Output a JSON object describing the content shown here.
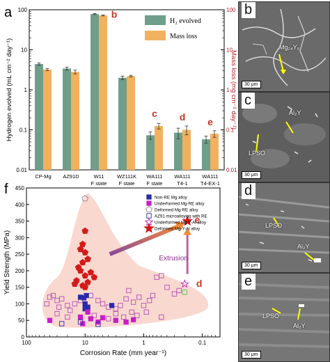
{
  "chart_data": [
    {
      "panel": "a",
      "type": "bar",
      "categories": [
        "CP-Mg",
        "AZ91D",
        "W11\nF state",
        "WZ111K\nF state",
        "WA111\nF state",
        "WA111\nT4-1",
        "WA111\nT4-EX-1"
      ],
      "series": [
        {
          "name": "H₂ evolved",
          "color": "#6f9f8a",
          "values": [
            4.4,
            3.4,
            78,
            2.0,
            0.073,
            0.085,
            0.058
          ],
          "errors": [
            0.3,
            0.3,
            2,
            0.2,
            0.015,
            0.025,
            0.012
          ]
        },
        {
          "name": "Mass loss",
          "color": "#f2b15f",
          "values": [
            3.2,
            2.8,
            72,
            2.2,
            0.125,
            0.1,
            0.08
          ],
          "errors": [
            0.2,
            0.3,
            2,
            0.1,
            0.02,
            0.025,
            0.015
          ]
        }
      ],
      "ylabel": "Hydrogen evolved (mL cm⁻² day⁻¹)",
      "y2label": "Mass loss (mg cm⁻² day⁻¹)",
      "yscale": "log",
      "ylim": [
        0.01,
        100
      ],
      "yticks": [
        "0.01",
        "0.1",
        "1",
        "10",
        "100"
      ],
      "y2ticks": [
        "0.01",
        "0.1",
        "1",
        "10",
        "100"
      ],
      "bar_annotations": [
        {
          "category_index": 2,
          "label": "b",
          "value": 80
        },
        {
          "category_index": 4,
          "label": "c",
          "value": 0.21
        },
        {
          "category_index": 5,
          "label": "d",
          "value": 0.17
        },
        {
          "category_index": 6,
          "label": "e",
          "value": 0.13
        }
      ],
      "legend_position": "top-right",
      "colors": {
        "annotation": "#c0392b",
        "right_axis": "#b0202a"
      }
    },
    {
      "panel": "f",
      "type": "scatter",
      "xlabel": "Corrosion Rate (mm year⁻¹)",
      "ylabel": "Yield Strength (MPa)",
      "xscale": "log",
      "xreversed": true,
      "xlim": [
        100,
        0.05
      ],
      "ylim": [
        0,
        450
      ],
      "xticks": [
        "100",
        "10",
        "1",
        "0.1"
      ],
      "yticks": [
        "0",
        "50",
        "100",
        "150",
        "200",
        "250",
        "300",
        "350",
        "400",
        "450"
      ],
      "series": [
        {
          "name": "Non-RE Mg alloy",
          "marker": "square-filled",
          "color": "#2a2aa8",
          "points": [
            [
              10,
              100
            ],
            [
              9,
              90
            ],
            [
              10,
              85
            ],
            [
              3.5,
              95
            ],
            [
              12,
              120
            ],
            [
              9.5,
              125
            ],
            [
              10.5,
              118
            ]
          ]
        },
        {
          "name": "Underformed Mg-RE alloy",
          "marker": "square-filled",
          "color": "#c81ec8",
          "points": [
            [
              40,
              50
            ],
            [
              12,
              60
            ],
            [
              8,
              55
            ],
            [
              6,
              45
            ],
            [
              5,
              58
            ],
            [
              3,
              50
            ],
            [
              2,
              45
            ],
            [
              1.5,
              52
            ],
            [
              9,
              75
            ],
            [
              11,
              40
            ]
          ]
        },
        {
          "name": "Deformed Mg-RE alloy",
          "marker": "pentagon-open",
          "color": "#888888",
          "points": [
            [
              10,
              418
            ]
          ]
        },
        {
          "name": "AZ91 microalloying with RE",
          "marker": "square-open",
          "color": "#2a2aa8",
          "points": [
            [
              25,
              40
            ],
            [
              12,
              45
            ],
            [
              6,
              38
            ]
          ]
        },
        {
          "name": "Underformed Mg-Y-Al alloy",
          "marker": "star-open",
          "color": "#c81ec8",
          "points": [
            [
              0.2,
              160
            ]
          ]
        },
        {
          "name": "Deformed Mg-Y-Al alloy",
          "marker": "star-filled",
          "color": "#d01818",
          "points": [
            [
              0.18,
              350
            ]
          ]
        }
      ],
      "extra_points": {
        "deformed_mg_re_filled": {
          "marker": "pentagon-filled",
          "color": "#d41a1a",
          "points": [
            [
              10,
              320
            ],
            [
              11,
              280
            ],
            [
              12,
              265
            ],
            [
              10,
              255
            ],
            [
              9,
              235
            ],
            [
              11,
              225
            ],
            [
              13,
              210
            ],
            [
              12,
              200
            ],
            [
              8,
              195
            ],
            [
              10,
              185
            ],
            [
              14,
              170
            ],
            [
              7,
              180
            ],
            [
              15,
              160
            ],
            [
              9,
              165
            ],
            [
              11,
              155
            ],
            [
              10,
              150
            ]
          ]
        },
        "underformed_open": {
          "marker": "square-open",
          "color": "#b450b4",
          "points": [
            [
              40,
              120
            ],
            [
              30,
              110
            ],
            [
              35,
              125
            ],
            [
              25,
              115
            ],
            [
              20,
              95
            ],
            [
              18,
              80
            ],
            [
              28,
              90
            ],
            [
              15,
              100
            ],
            [
              45,
              100
            ],
            [
              12,
              110
            ],
            [
              8,
              125
            ],
            [
              6,
              110
            ],
            [
              5,
              100
            ],
            [
              4,
              90
            ],
            [
              3,
              85
            ],
            [
              2.5,
              95
            ],
            [
              2,
              115
            ],
            [
              1.8,
              140
            ],
            [
              1.5,
              105
            ],
            [
              1.2,
              120
            ],
            [
              1,
              95
            ],
            [
              0.8,
              110
            ],
            [
              0.7,
              125
            ],
            [
              0.6,
              180
            ],
            [
              0.5,
              185
            ],
            [
              0.4,
              150
            ],
            [
              0.3,
              130
            ],
            [
              0.25,
              140
            ],
            [
              3,
              70
            ],
            [
              2.2,
              60
            ],
            [
              1.6,
              75
            ],
            [
              30,
              70
            ],
            [
              20,
              60
            ],
            [
              7,
              65
            ],
            [
              4,
              55
            ],
            [
              0.9,
              75
            ],
            [
              1.3,
              65
            ],
            [
              0.5,
              60
            ]
          ]
        },
        "green_open": {
          "marker": "square-open",
          "color": "#5cbf5c",
          "points": [
            [
              0.2,
              135
            ]
          ]
        }
      },
      "annotations": [
        {
          "text": "e",
          "x": 0.16,
          "y": 352,
          "color": "#c0392b"
        },
        {
          "text": "d",
          "x": 0.15,
          "y": 160,
          "color": "#c0392b"
        },
        {
          "text": "Extrusion",
          "x": 0.27,
          "y": 240,
          "color": "#8a2a8a"
        }
      ],
      "shaded_region_color": "#f9d8cf",
      "legend_position": "top-right"
    }
  ],
  "panel_labels": {
    "a": "a",
    "f": "f"
  },
  "micrographs": [
    {
      "label": "b",
      "scale_bar": "30 μm",
      "annotations": [
        "Mg₂₄Y₅"
      ]
    },
    {
      "label": "c",
      "scale_bar": "30 μm",
      "annotations": [
        "Al₂Y",
        "LPSO"
      ]
    },
    {
      "label": "d",
      "scale_bar": "30 μm",
      "annotations": [
        "LPSO",
        "Al₂Y"
      ]
    },
    {
      "label": "e",
      "scale_bar": "30 μm",
      "annotations": [
        "LPSO",
        "Al₂Y"
      ]
    }
  ]
}
